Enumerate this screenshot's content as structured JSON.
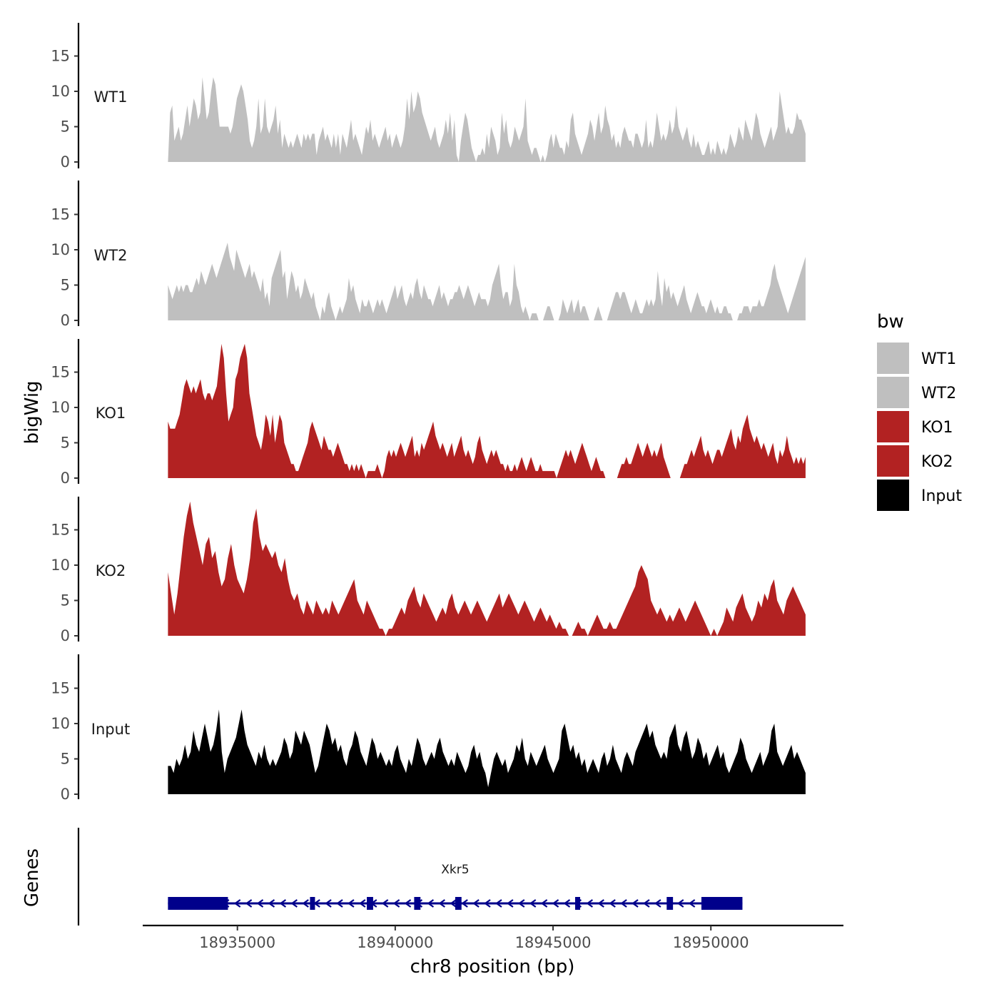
{
  "chart_data": {
    "type": "area",
    "chromosome": "chr8",
    "xlabel": "chr8 position (bp)",
    "ylabel": "bigWig",
    "genes_label": "Genes",
    "xlim": [
      18932000,
      18954200
    ],
    "x_ticks": [
      18935000,
      18940000,
      18945000,
      18950000
    ],
    "x_tick_labels": [
      "18935000",
      "18940000",
      "18945000",
      "18950000"
    ],
    "ylim": [
      0,
      20
    ],
    "y_ticks": [
      0,
      5,
      10,
      15
    ],
    "y_tick_labels": [
      "0",
      "5",
      "10",
      "15"
    ],
    "x_start": 18932800,
    "x_end": 18953000,
    "tracks": [
      {
        "name": "WT1",
        "color": "#bfbfbf",
        "values": [
          0,
          7,
          8,
          3,
          4,
          5,
          3,
          4,
          6,
          8,
          5,
          7,
          9,
          8,
          6,
          7,
          12,
          9,
          6,
          7,
          10,
          12,
          11,
          8,
          5,
          5,
          5,
          5,
          5,
          4,
          5,
          7,
          9,
          10,
          11,
          10,
          8,
          6,
          3,
          2,
          3,
          5,
          9,
          4,
          5,
          9,
          5,
          4,
          5,
          6,
          8,
          4,
          6,
          2,
          4,
          3,
          2,
          3,
          2,
          3,
          4,
          3,
          2,
          4,
          3,
          4,
          3,
          4,
          4,
          1,
          3,
          4,
          5,
          3,
          4,
          3,
          2,
          4,
          2,
          4,
          1,
          4,
          3,
          2,
          4,
          6,
          3,
          4,
          3,
          2,
          1,
          3,
          5,
          4,
          6,
          3,
          4,
          3,
          2,
          3,
          4,
          5,
          3,
          4,
          2,
          3,
          4,
          3,
          2,
          3,
          5,
          9,
          6,
          10,
          7,
          8,
          10,
          9,
          7,
          6,
          5,
          4,
          3,
          4,
          5,
          3,
          2,
          3,
          4,
          6,
          4,
          7,
          3,
          6,
          1,
          0,
          3,
          5,
          7,
          6,
          4,
          2,
          1,
          0,
          1,
          1,
          2,
          1,
          4,
          2,
          5,
          4,
          3,
          1,
          2,
          7,
          4,
          6,
          3,
          2,
          3,
          5,
          4,
          3,
          4,
          5,
          9,
          3,
          2,
          1,
          2,
          2,
          1,
          0,
          1,
          0,
          1,
          3,
          4,
          2,
          4,
          3,
          2,
          2,
          1,
          3,
          2,
          6,
          7,
          4,
          3,
          2,
          1,
          2,
          3,
          4,
          6,
          5,
          3,
          5,
          7,
          4,
          5,
          8,
          6,
          5,
          3,
          4,
          2,
          3,
          2,
          4,
          5,
          4,
          3,
          3,
          2,
          4,
          4,
          3,
          2,
          3,
          6,
          2,
          3,
          2,
          4,
          7,
          5,
          3,
          4,
          3,
          4,
          6,
          4,
          5,
          8,
          5,
          4,
          3,
          4,
          5,
          3,
          2,
          4,
          2,
          3,
          2,
          1,
          1,
          2,
          3,
          1,
          2,
          1,
          3,
          2,
          1,
          2,
          1,
          2,
          4,
          3,
          2,
          3,
          5,
          4,
          3,
          6,
          5,
          4,
          3,
          5,
          7,
          6,
          4,
          3,
          2,
          3,
          4,
          5,
          3,
          4,
          5,
          10,
          8,
          6,
          4,
          5,
          4,
          4,
          5,
          7,
          6,
          6,
          5,
          4
        ]
      },
      {
        "name": "WT2",
        "color": "#bfbfbf",
        "values": [
          5,
          4,
          3,
          4,
          5,
          4,
          5,
          4,
          5,
          5,
          4,
          4,
          5,
          6,
          5,
          7,
          6,
          5,
          6,
          7,
          8,
          7,
          6,
          7,
          8,
          9,
          10,
          11,
          9,
          8,
          7,
          10,
          9,
          8,
          7,
          6,
          7,
          8,
          6,
          7,
          6,
          5,
          4,
          6,
          3,
          4,
          2,
          6,
          7,
          8,
          9,
          10,
          6,
          7,
          3,
          5,
          7,
          6,
          4,
          5,
          3,
          4,
          6,
          5,
          4,
          3,
          4,
          2,
          1,
          0,
          2,
          1,
          3,
          4,
          2,
          1,
          0,
          1,
          2,
          1,
          2,
          3,
          6,
          4,
          5,
          3,
          2,
          1,
          3,
          2,
          2,
          3,
          2,
          1,
          2,
          3,
          2,
          3,
          2,
          1,
          2,
          3,
          4,
          5,
          3,
          4,
          5,
          3,
          2,
          3,
          4,
          3,
          5,
          6,
          4,
          3,
          5,
          4,
          3,
          3,
          2,
          3,
          4,
          5,
          3,
          4,
          3,
          2,
          3,
          3,
          4,
          4,
          5,
          4,
          3,
          4,
          5,
          4,
          3,
          2,
          3,
          4,
          3,
          3,
          3,
          2,
          3,
          5,
          6,
          7,
          8,
          5,
          3,
          4,
          4,
          2,
          3,
          8,
          5,
          4,
          2,
          1,
          2,
          1,
          0,
          1,
          1,
          1,
          0,
          0,
          0,
          1,
          2,
          2,
          1,
          0,
          0,
          0,
          1,
          3,
          2,
          1,
          2,
          3,
          1,
          2,
          3,
          1,
          2,
          2,
          1,
          0,
          0,
          0,
          1,
          2,
          1,
          0,
          0,
          0,
          1,
          2,
          3,
          4,
          4,
          3,
          4,
          4,
          3,
          2,
          1,
          2,
          3,
          2,
          1,
          1,
          2,
          3,
          2,
          3,
          2,
          3,
          7,
          4,
          2,
          6,
          4,
          5,
          3,
          4,
          3,
          2,
          3,
          4,
          5,
          3,
          2,
          1,
          2,
          3,
          4,
          3,
          2,
          2,
          1,
          2,
          3,
          2,
          1,
          2,
          1,
          1,
          2,
          2,
          1,
          1,
          0,
          0,
          0,
          1,
          1,
          2,
          2,
          2,
          1,
          2,
          2,
          2,
          3,
          2,
          2,
          3,
          4,
          5,
          7,
          8,
          6,
          5,
          4,
          3,
          2,
          1,
          2,
          3,
          4,
          5,
          6,
          7,
          8,
          9
        ]
      },
      {
        "name": "KO1",
        "color": "#b22222",
        "values": [
          8,
          7,
          7,
          7,
          8,
          9,
          11,
          13,
          14,
          13,
          12,
          13,
          12,
          13,
          14,
          12,
          11,
          12,
          12,
          11,
          12,
          13,
          16,
          19,
          17,
          12,
          8,
          9,
          10,
          14,
          15,
          17,
          18,
          19,
          17,
          12,
          10,
          8,
          6,
          5,
          4,
          6,
          9,
          8,
          6,
          9,
          5,
          7,
          9,
          8,
          5,
          4,
          3,
          2,
          2,
          1,
          1,
          2,
          3,
          4,
          5,
          7,
          8,
          7,
          6,
          5,
          4,
          6,
          5,
          4,
          4,
          3,
          4,
          5,
          4,
          3,
          2,
          2,
          1,
          2,
          1,
          2,
          1,
          2,
          1,
          0,
          1,
          1,
          1,
          1,
          2,
          1,
          0,
          1,
          3,
          4,
          3,
          4,
          3,
          4,
          5,
          4,
          3,
          4,
          5,
          6,
          3,
          4,
          3,
          5,
          4,
          5,
          6,
          7,
          8,
          6,
          5,
          4,
          5,
          4,
          3,
          4,
          5,
          3,
          4,
          5,
          6,
          4,
          3,
          4,
          3,
          2,
          3,
          5,
          6,
          4,
          3,
          2,
          3,
          4,
          3,
          4,
          3,
          2,
          2,
          1,
          2,
          1,
          1,
          2,
          1,
          2,
          3,
          2,
          1,
          2,
          3,
          2,
          1,
          1,
          2,
          1,
          1,
          1,
          1,
          1,
          1,
          0,
          1,
          2,
          3,
          4,
          3,
          4,
          3,
          2,
          3,
          4,
          5,
          4,
          3,
          2,
          1,
          2,
          3,
          2,
          1,
          1,
          0,
          0,
          0,
          0,
          0,
          0,
          1,
          2,
          2,
          3,
          2,
          2,
          3,
          4,
          5,
          4,
          3,
          4,
          5,
          4,
          3,
          4,
          3,
          4,
          5,
          3,
          2,
          1,
          0,
          0,
          0,
          0,
          0,
          1,
          2,
          2,
          3,
          4,
          3,
          4,
          5,
          6,
          4,
          3,
          4,
          3,
          2,
          3,
          4,
          4,
          3,
          4,
          5,
          6,
          7,
          5,
          4,
          6,
          5,
          7,
          8,
          9,
          7,
          6,
          5,
          6,
          5,
          4,
          5,
          4,
          3,
          4,
          5,
          3,
          2,
          4,
          3,
          4,
          6,
          4,
          3,
          2,
          3,
          2,
          3,
          2,
          3
        ]
      },
      {
        "name": "KO2",
        "color": "#b22222",
        "values": [
          9,
          6,
          3,
          6,
          10,
          14,
          17,
          19,
          16,
          14,
          12,
          10,
          13,
          14,
          11,
          12,
          9,
          7,
          8,
          11,
          13,
          10,
          8,
          7,
          6,
          8,
          11,
          16,
          18,
          14,
          12,
          13,
          12,
          11,
          12,
          10,
          9,
          11,
          8,
          6,
          5,
          6,
          4,
          3,
          5,
          4,
          3,
          5,
          4,
          3,
          4,
          3,
          5,
          4,
          3,
          4,
          5,
          6,
          7,
          8,
          5,
          4,
          3,
          5,
          4,
          3,
          2,
          1,
          1,
          0,
          1,
          1,
          2,
          3,
          4,
          3,
          5,
          6,
          7,
          5,
          4,
          6,
          5,
          4,
          3,
          2,
          3,
          4,
          3,
          5,
          6,
          4,
          3,
          4,
          5,
          4,
          3,
          4,
          5,
          4,
          3,
          2,
          3,
          4,
          5,
          6,
          4,
          5,
          6,
          5,
          4,
          3,
          4,
          5,
          4,
          3,
          2,
          3,
          4,
          3,
          2,
          3,
          2,
          1,
          2,
          1,
          1,
          0,
          0,
          1,
          2,
          1,
          1,
          0,
          1,
          2,
          3,
          2,
          1,
          1,
          2,
          1,
          1,
          2,
          3,
          4,
          5,
          6,
          7,
          9,
          10,
          9,
          8,
          5,
          4,
          3,
          4,
          3,
          2,
          3,
          2,
          3,
          4,
          3,
          2,
          3,
          4,
          5,
          4,
          3,
          2,
          1,
          0,
          1,
          0,
          1,
          2,
          4,
          3,
          2,
          4,
          5,
          6,
          4,
          3,
          2,
          3,
          5,
          4,
          6,
          5,
          7,
          8,
          5,
          4,
          3,
          5,
          6,
          7,
          6,
          5,
          4,
          3
        ]
      },
      {
        "name": "Input",
        "color": "#000000",
        "values": [
          4,
          4,
          3,
          5,
          4,
          5,
          7,
          5,
          6,
          9,
          7,
          6,
          8,
          10,
          8,
          6,
          7,
          9,
          12,
          6,
          3,
          5,
          6,
          7,
          8,
          10,
          12,
          9,
          7,
          6,
          5,
          4,
          6,
          5,
          7,
          5,
          4,
          5,
          4,
          5,
          6,
          8,
          7,
          5,
          6,
          9,
          8,
          7,
          9,
          8,
          7,
          5,
          3,
          4,
          6,
          8,
          10,
          9,
          7,
          8,
          6,
          7,
          5,
          4,
          6,
          7,
          9,
          8,
          6,
          5,
          4,
          6,
          8,
          7,
          5,
          6,
          5,
          4,
          5,
          4,
          6,
          7,
          5,
          4,
          3,
          5,
          4,
          6,
          8,
          7,
          5,
          4,
          5,
          6,
          5,
          7,
          8,
          6,
          5,
          4,
          5,
          4,
          6,
          5,
          4,
          3,
          4,
          6,
          7,
          5,
          6,
          4,
          3,
          1,
          3,
          5,
          6,
          5,
          4,
          5,
          3,
          4,
          5,
          7,
          6,
          8,
          5,
          4,
          6,
          5,
          4,
          5,
          6,
          7,
          5,
          4,
          3,
          4,
          5,
          9,
          10,
          8,
          6,
          7,
          5,
          6,
          4,
          5,
          3,
          4,
          5,
          4,
          3,
          5,
          6,
          4,
          5,
          7,
          5,
          4,
          3,
          5,
          6,
          5,
          4,
          6,
          7,
          8,
          9,
          10,
          8,
          9,
          7,
          6,
          5,
          6,
          5,
          8,
          9,
          10,
          7,
          6,
          8,
          9,
          7,
          5,
          6,
          8,
          7,
          5,
          6,
          4,
          5,
          6,
          7,
          5,
          6,
          4,
          3,
          4,
          5,
          6,
          8,
          7,
          5,
          4,
          3,
          4,
          5,
          6,
          4,
          5,
          6,
          9,
          10,
          6,
          5,
          4,
          5,
          6,
          7,
          5,
          6,
          5,
          4,
          3
        ]
      }
    ],
    "gene": {
      "name": "Xkr5",
      "color": "#00008b",
      "strand": "-",
      "start": 18932800,
      "end": 18951000,
      "exons": [
        [
          18932800,
          18934700
        ],
        [
          18937300,
          18937400
        ],
        [
          18939100,
          18939300
        ],
        [
          18940600,
          18940800
        ],
        [
          18941900,
          18942100
        ],
        [
          18945700,
          18945800
        ],
        [
          18948600,
          18948800
        ],
        [
          18949700,
          18951000
        ]
      ]
    },
    "legend": {
      "title": "bw",
      "placement": "right",
      "entries": [
        {
          "label": "WT1",
          "color": "#bfbfbf"
        },
        {
          "label": "WT2",
          "color": "#bfbfbf"
        },
        {
          "label": "KO1",
          "color": "#b22222"
        },
        {
          "label": "KO2",
          "color": "#b22222"
        },
        {
          "label": "Input",
          "color": "#000000"
        }
      ]
    }
  }
}
